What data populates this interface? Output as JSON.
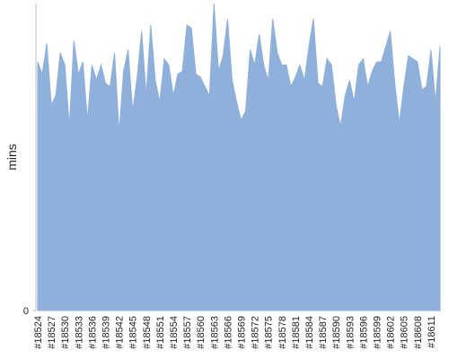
{
  "chart_data": {
    "type": "area",
    "y_label": "mins",
    "color": "#8fb0da",
    "ylim": [
      0,
      100
    ],
    "yticks": [
      0
    ],
    "grid": false,
    "categories": [
      "#18524",
      null,
      null,
      "#18527",
      null,
      null,
      "#18530",
      null,
      null,
      "#18533",
      null,
      null,
      "#18536",
      null,
      null,
      "#18539",
      null,
      null,
      "#18542",
      null,
      null,
      "#18545",
      null,
      null,
      "#18548",
      null,
      null,
      "#18551",
      null,
      null,
      "#18554",
      null,
      null,
      "#18557",
      null,
      null,
      "#18560",
      null,
      null,
      "#18563",
      null,
      null,
      "#18566",
      null,
      null,
      "#18569",
      null,
      null,
      "#18572",
      null,
      null,
      "#18575",
      null,
      null,
      "#18578",
      null,
      null,
      "#18581",
      null,
      null,
      "#18584",
      null,
      null,
      "#18587",
      null,
      null,
      "#18590",
      null,
      null,
      "#18593",
      null,
      null,
      "#18596",
      null,
      null,
      "#18599",
      null,
      null,
      "#18602",
      null,
      null,
      "#18605",
      null,
      null,
      "#18608",
      null,
      null,
      "#18611",
      null,
      null
    ],
    "values": [
      81,
      77,
      87,
      67,
      70,
      84,
      80,
      60,
      88,
      77,
      81,
      62,
      80,
      75,
      80,
      74,
      73,
      84,
      58,
      78,
      85,
      65,
      76,
      91,
      70,
      93,
      75,
      68,
      82,
      80,
      70,
      77,
      78,
      93,
      92,
      77,
      76,
      73,
      70,
      100,
      78,
      83,
      95,
      75,
      68,
      62,
      65,
      85,
      80,
      90,
      80,
      75,
      95,
      84,
      80,
      80,
      73,
      76,
      80,
      75,
      86,
      95,
      74,
      73,
      82,
      80,
      67,
      60,
      70,
      75,
      68,
      80,
      82,
      73,
      78,
      81,
      81,
      86,
      91,
      74,
      61,
      73,
      83,
      82,
      81,
      72,
      73,
      85,
      68,
      86
    ]
  }
}
